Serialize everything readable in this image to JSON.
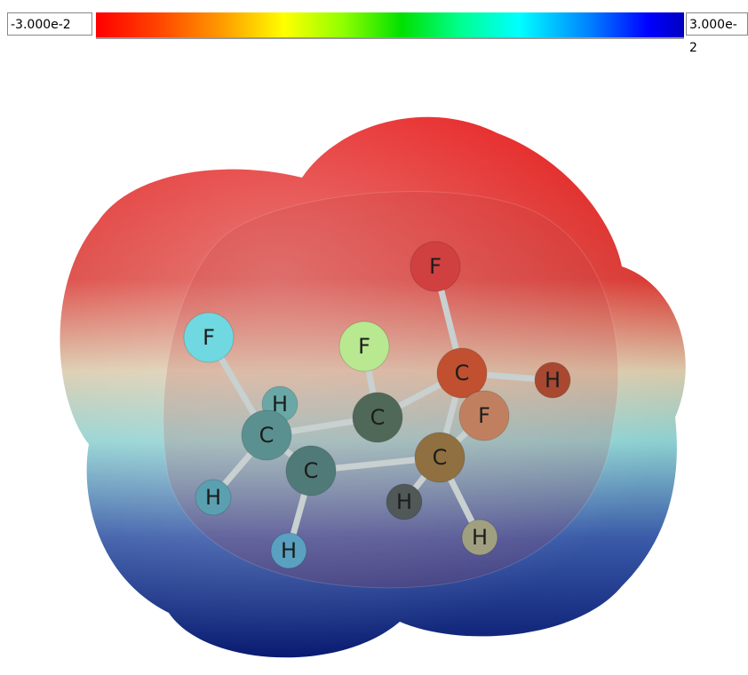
{
  "colorbar": {
    "min_label": "-3.000e-2",
    "max_label": "3.000e-2"
  },
  "atoms": [
    "F",
    "F",
    "F",
    "C",
    "H",
    "H",
    "C",
    "C",
    "F",
    "C",
    "C",
    "H",
    "H",
    "H",
    "H"
  ]
}
